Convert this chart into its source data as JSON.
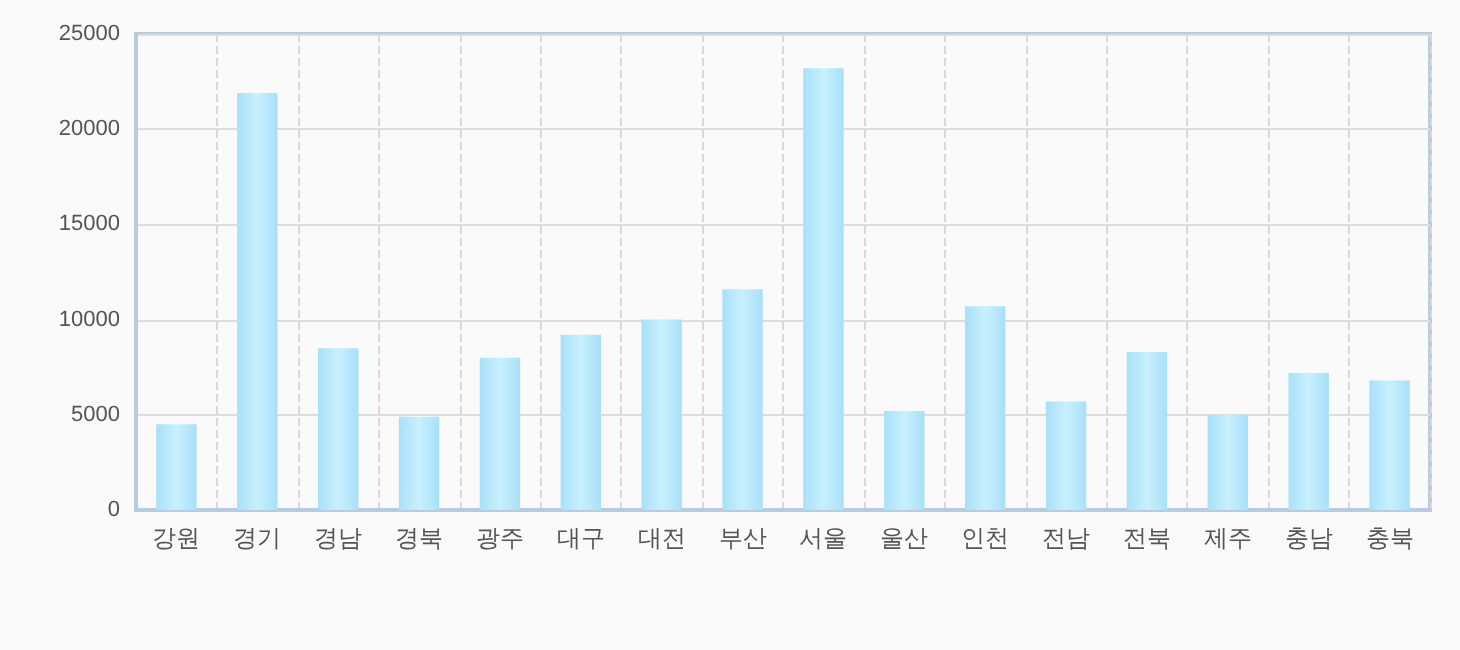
{
  "chart_data": {
    "type": "bar",
    "categories": [
      "강원",
      "경기",
      "경남",
      "경북",
      "광주",
      "대구",
      "대전",
      "부산",
      "서울",
      "울산",
      "인천",
      "전남",
      "전북",
      "제주",
      "충남",
      "충북"
    ],
    "series": [
      {
        "color": "#a8e0f8",
        "values": [
          4500,
          21900,
          8500,
          4900,
          8000,
          9200,
          10000,
          11600,
          23200,
          5200,
          10700,
          5700,
          8300,
          5000,
          7200,
          6800
        ]
      }
    ],
    "ylim": [
      0,
      25000
    ],
    "yticks": [
      0,
      5000,
      10000,
      15000,
      20000,
      25000
    ],
    "grid": true
  }
}
